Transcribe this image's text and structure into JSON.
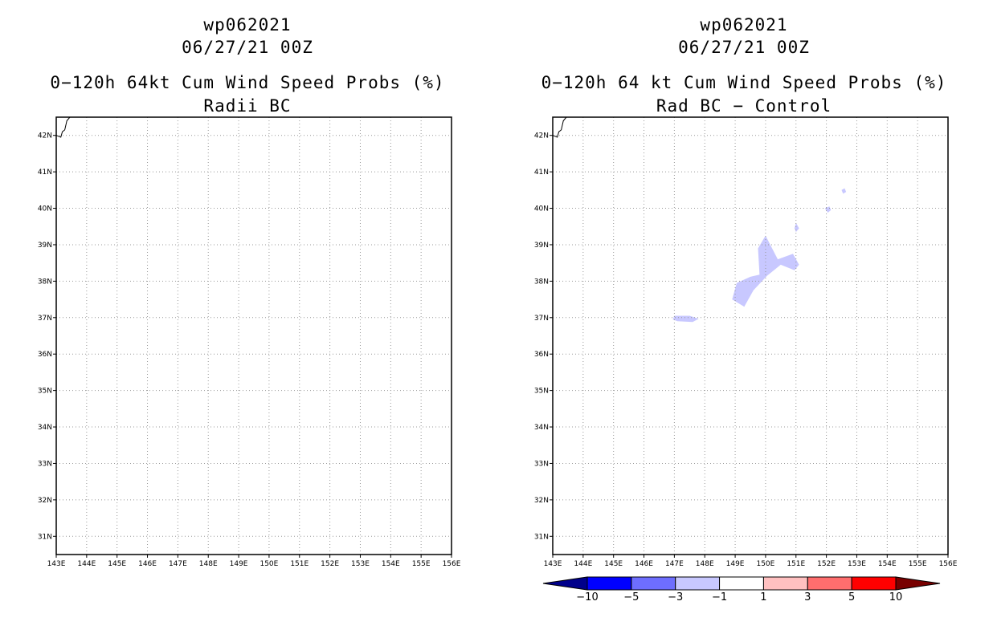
{
  "panels": [
    {
      "name": "left",
      "title_lines": [
        "wp062021",
        "06/27/21 00Z",
        "0−120h 64kt Cum Wind Speed Probs (%)",
        "Radii BC"
      ]
    },
    {
      "name": "right",
      "title_lines": [
        "wp062021",
        "06/27/21 00Z",
        "0−120h 64 kt Cum Wind Speed Probs (%)",
        "Rad BC − Control"
      ]
    }
  ],
  "map": {
    "lon_labels": [
      "143E",
      "144E",
      "145E",
      "146E",
      "147E",
      "148E",
      "149E",
      "150E",
      "151E",
      "152E",
      "153E",
      "154E",
      "155E",
      "156E"
    ],
    "lon_values": [
      143,
      144,
      145,
      146,
      147,
      148,
      149,
      150,
      151,
      152,
      153,
      154,
      155,
      156
    ],
    "lat_labels": [
      "31N",
      "32N",
      "33N",
      "34N",
      "35N",
      "36N",
      "37N",
      "38N",
      "39N",
      "40N",
      "41N",
      "42N"
    ],
    "lat_values": [
      31,
      32,
      33,
      34,
      35,
      36,
      37,
      38,
      39,
      40,
      41,
      42
    ],
    "lon_range": [
      143,
      156
    ],
    "lat_range": [
      30.5,
      42.5
    ],
    "grid": "dotted"
  },
  "diff_field": {
    "color": "#c8c8ff",
    "category": "-3 to -1",
    "polygons": [
      [
        [
          147.0,
          37.05
        ],
        [
          147.5,
          37.05
        ],
        [
          147.8,
          36.97
        ],
        [
          147.6,
          36.88
        ],
        [
          147.1,
          36.9
        ],
        [
          146.95,
          36.95
        ]
      ],
      [
        [
          148.9,
          37.5
        ],
        [
          149.05,
          37.95
        ],
        [
          149.5,
          38.12
        ],
        [
          149.8,
          38.18
        ],
        [
          149.75,
          38.9
        ],
        [
          150.0,
          39.25
        ],
        [
          150.4,
          38.6
        ],
        [
          150.9,
          38.75
        ],
        [
          151.1,
          38.45
        ],
        [
          150.95,
          38.3
        ],
        [
          150.5,
          38.45
        ],
        [
          150.05,
          38.15
        ],
        [
          149.6,
          37.75
        ],
        [
          149.3,
          37.3
        ]
      ],
      [
        [
          151.0,
          39.6
        ],
        [
          151.1,
          39.45
        ],
        [
          151.0,
          39.35
        ],
        [
          150.95,
          39.45
        ]
      ],
      [
        [
          151.95,
          40.0
        ],
        [
          152.1,
          40.05
        ],
        [
          152.15,
          39.95
        ],
        [
          152.05,
          39.88
        ]
      ],
      [
        [
          152.5,
          40.5
        ],
        [
          152.6,
          40.55
        ],
        [
          152.65,
          40.45
        ],
        [
          152.55,
          40.4
        ]
      ]
    ]
  },
  "coastline": [
    [
      143.0,
      42.0
    ],
    [
      143.15,
      41.95
    ],
    [
      143.2,
      42.1
    ],
    [
      143.28,
      42.15
    ],
    [
      143.35,
      42.4
    ],
    [
      143.45,
      42.5
    ]
  ],
  "colorbar": {
    "labels": [
      "−10",
      "−5",
      "−3",
      "−1",
      "1",
      "3",
      "5",
      "10"
    ],
    "colors": [
      "#00008b",
      "#0000ff",
      "#6e6eff",
      "#c8c8ff",
      "#ffffff",
      "#ffc0c0",
      "#ff6e6e",
      "#ff0000",
      "#780000"
    ]
  }
}
